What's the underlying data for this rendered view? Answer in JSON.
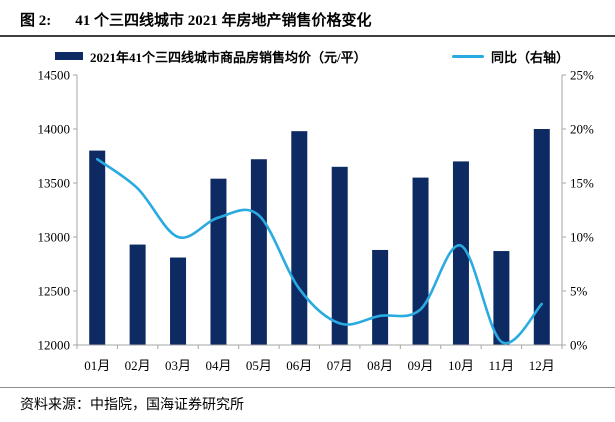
{
  "header": {
    "figure_label": "图 2:",
    "title": "41 个三四线城市 2021 年房地产销售价格变化"
  },
  "legend": [
    {
      "label": "2021年41个三四线城市商品房销售均价（元/平）",
      "type": "bar",
      "color": "#0e2a63"
    },
    {
      "label": "同比（右轴）",
      "type": "line",
      "color": "#29aae1"
    }
  ],
  "chart_data": {
    "type": "bar+line",
    "categories": [
      "01月",
      "02月",
      "03月",
      "04月",
      "05月",
      "06月",
      "07月",
      "08月",
      "09月",
      "10月",
      "11月",
      "12月"
    ],
    "series": [
      {
        "name": "2021年41个三四线城市商品房销售均价（元/平）",
        "type": "bar",
        "axis": "left",
        "color": "#0e2a63",
        "values": [
          13800,
          12930,
          12810,
          13540,
          13720,
          13980,
          13650,
          12880,
          13550,
          13700,
          12870,
          14000
        ]
      },
      {
        "name": "同比（右轴）",
        "type": "line",
        "axis": "right",
        "color": "#29aae1",
        "values": [
          17.2,
          14.5,
          10.0,
          11.8,
          12.0,
          5.2,
          2.0,
          2.7,
          3.3,
          9.2,
          0.3,
          3.8
        ]
      }
    ],
    "left_axis": {
      "min": 12000,
      "max": 14500,
      "step": 500,
      "tick_labels": [
        "14500",
        "14000",
        "13500",
        "13000",
        "12500",
        "12000"
      ]
    },
    "right_axis": {
      "min": 0,
      "max": 25,
      "step": 5,
      "tick_labels": [
        "25%",
        "20%",
        "15%",
        "10%",
        "5%",
        "0%"
      ]
    },
    "grid": false,
    "legend_position": "top",
    "line_smoothed": true
  },
  "footer": {
    "source": "资料来源：中指院，国海证券研究所"
  }
}
